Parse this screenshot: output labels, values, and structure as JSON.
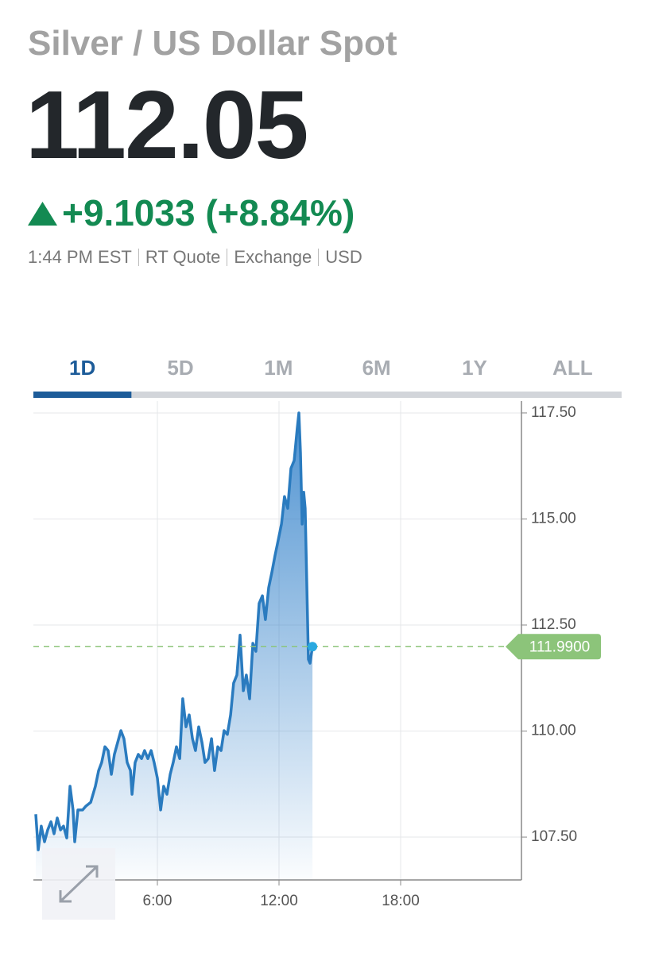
{
  "header": {
    "title": "Silver / US Dollar Spot",
    "price": "112.05",
    "change": "+9.1033 (+8.84%)",
    "meta": [
      "1:44 PM EST",
      "RT Quote",
      "Exchange",
      "USD"
    ]
  },
  "tabs": {
    "items": [
      "1D",
      "5D",
      "1M",
      "6M",
      "1Y",
      "ALL"
    ],
    "active": 0
  },
  "chart_data": {
    "type": "area",
    "color": "#2a7bbf",
    "x": [
      0.0,
      0.12,
      0.27,
      0.43,
      0.59,
      0.75,
      0.9,
      1.06,
      1.22,
      1.37,
      1.53,
      1.69,
      1.84,
      1.92,
      2.08,
      2.31,
      2.47,
      2.71,
      2.94,
      3.1,
      3.25,
      3.41,
      3.57,
      3.73,
      3.88,
      4.04,
      4.2,
      4.35,
      4.51,
      4.67,
      4.75,
      4.9,
      5.06,
      5.22,
      5.37,
      5.53,
      5.69,
      5.84,
      6.0,
      6.16,
      6.31,
      6.47,
      6.63,
      6.78,
      6.94,
      7.1,
      7.25,
      7.41,
      7.57,
      7.73,
      7.88,
      8.04,
      8.2,
      8.35,
      8.51,
      8.67,
      8.82,
      8.98,
      9.14,
      9.29,
      9.45,
      9.61,
      9.76,
      9.92,
      10.08,
      10.24,
      10.39,
      10.55,
      10.71,
      10.86,
      11.02,
      11.18,
      11.33,
      11.49,
      11.65,
      11.8,
      11.96,
      12.12,
      12.27,
      12.43,
      12.59,
      12.75,
      12.9,
      12.98,
      13.06,
      13.14,
      13.22,
      13.29,
      13.45,
      13.53,
      13.65
    ],
    "values": [
      108.04,
      107.2,
      107.76,
      107.39,
      107.67,
      107.86,
      107.58,
      107.95,
      107.67,
      107.76,
      107.48,
      108.7,
      108.14,
      107.39,
      108.14,
      108.14,
      108.23,
      108.32,
      108.7,
      109.07,
      109.26,
      109.63,
      109.54,
      108.98,
      109.45,
      109.73,
      110.01,
      109.82,
      109.26,
      109.07,
      108.51,
      109.26,
      109.45,
      109.35,
      109.54,
      109.35,
      109.54,
      109.26,
      108.89,
      108.14,
      108.7,
      108.51,
      108.98,
      109.26,
      109.63,
      109.35,
      110.76,
      110.1,
      110.38,
      109.82,
      109.54,
      110.1,
      109.73,
      109.26,
      109.35,
      109.82,
      109.07,
      109.63,
      109.54,
      110.01,
      109.92,
      110.38,
      111.13,
      111.32,
      112.26,
      110.95,
      111.32,
      110.76,
      112.07,
      111.88,
      113.01,
      113.19,
      112.63,
      113.38,
      113.75,
      114.13,
      114.5,
      114.88,
      115.53,
      115.25,
      116.19,
      116.38,
      117.13,
      117.5,
      116.56,
      114.88,
      115.63,
      115.25,
      111.69,
      111.6,
      111.99
    ],
    "xlim": [
      0,
      24
    ],
    "xticks": [
      {
        "value": 6,
        "label": "6:00"
      },
      {
        "value": 12,
        "label": "12:00"
      },
      {
        "value": 18,
        "label": "18:00"
      }
    ],
    "ylim": [
      106.49,
      117.78
    ],
    "yticks": [
      {
        "value": 107.5,
        "label": "107.50"
      },
      {
        "value": 110,
        "label": "110.00"
      },
      {
        "value": 112.5,
        "label": "112.50"
      },
      {
        "value": 115,
        "label": "115.00"
      },
      {
        "value": 117.5,
        "label": "117.50"
      }
    ],
    "grid": true,
    "price_line": {
      "value": 111.99,
      "label": "111.9900"
    }
  }
}
